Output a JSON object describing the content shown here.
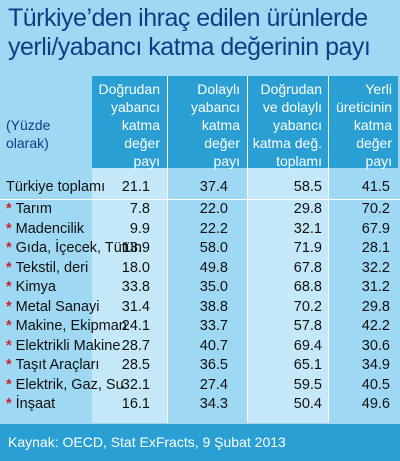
{
  "title": {
    "line1": "Türkiye’den ihraç edilen ürünlerde",
    "line2": "yerli/yabancı katma değerinin payı"
  },
  "unit_note": [
    "(Yüzde",
    "olarak)"
  ],
  "columns": [
    [
      "Doğrudan",
      "yabancı",
      "katma",
      "değer",
      "payı"
    ],
    [
      "Dolaylı",
      "yabancı",
      "katma",
      "değer",
      "payı"
    ],
    [
      "Doğrudan",
      "ve dolaylı",
      "yabancı",
      "katma değ.",
      "toplamı"
    ],
    [
      "Yerli",
      "üreticinin",
      "katma",
      "değer",
      "payı"
    ]
  ],
  "chart_data": {
    "type": "table",
    "title": "Türkiye’den ihraç edilen ürünlerde yerli/yabancı katma değerinin payı",
    "columns": [
      "Doğrudan yabancı katma değer payı",
      "Dolaylı yabancı katma değer payı",
      "Doğrudan ve dolaylı yabancı katma değ. toplamı",
      "Yerli üreticinin katma değer payı"
    ],
    "rows": [
      {
        "label": "Türkiye toplamı",
        "star": false,
        "values": [
          "21.1",
          "37.4",
          "58.5",
          "41.5"
        ]
      },
      {
        "label": "Tarım",
        "star": true,
        "values": [
          "7.8",
          "22.0",
          "29.8",
          "70.2"
        ]
      },
      {
        "label": "Madencilik",
        "star": true,
        "values": [
          "9.9",
          "22.2",
          "32.1",
          "67.9"
        ]
      },
      {
        "label": "Gıda, İçecek, Tütün",
        "star": true,
        "values": [
          "13.9",
          "58.0",
          "71.9",
          "28.1"
        ]
      },
      {
        "label": "Tekstil, deri",
        "star": true,
        "values": [
          "18.0",
          "49.8",
          "67.8",
          "32.2"
        ]
      },
      {
        "label": "Kimya",
        "star": true,
        "values": [
          "33.8",
          "35.0",
          "68.8",
          "31.2"
        ]
      },
      {
        "label": "Metal Sanayi",
        "star": true,
        "values": [
          "31.4",
          "38.8",
          "70.2",
          "29.8"
        ]
      },
      {
        "label": "Makine, Ekipman",
        "star": true,
        "values": [
          "24.1",
          "33.7",
          "57.8",
          "42.2"
        ]
      },
      {
        "label": "Elektrikli Makine",
        "star": true,
        "values": [
          "28.7",
          "40.7",
          "69.4",
          "30.6"
        ]
      },
      {
        "label": "Taşıt Araçları",
        "star": true,
        "values": [
          "28.5",
          "36.5",
          "65.1",
          "34.9"
        ]
      },
      {
        "label": "Elektrik, Gaz, Su",
        "star": true,
        "values": [
          "32.1",
          "27.4",
          "59.5",
          "40.5"
        ]
      },
      {
        "label": "İnşaat",
        "star": true,
        "values": [
          "16.1",
          "34.3",
          "50.4",
          "49.6"
        ]
      }
    ]
  },
  "star_symbol": "*",
  "source": "Kaynak: OECD, Stat ExFracts, 9 Şubat 2013",
  "colors": {
    "background": "#9fd8f2",
    "header": "#2a9fd3",
    "title": "#0c3f86",
    "star": "#d0202a"
  }
}
